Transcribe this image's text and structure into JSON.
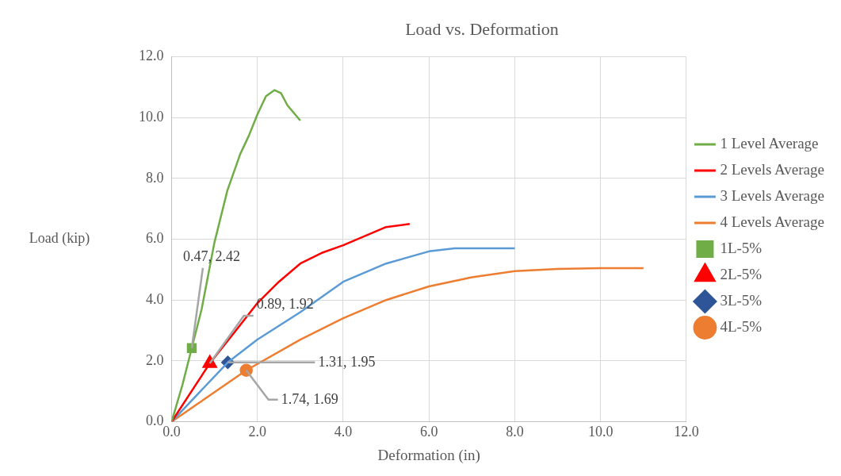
{
  "chart_data": {
    "type": "line",
    "title": "Load vs. Deformation",
    "xlabel": "Deformation (in)",
    "ylabel": "Load (kip)",
    "xlim": [
      0,
      12
    ],
    "ylim": [
      0,
      12
    ],
    "xticks": [
      {
        "value": 0,
        "label": "0.0"
      },
      {
        "value": 2,
        "label": "2.0"
      },
      {
        "value": 4,
        "label": "4.0"
      },
      {
        "value": 6,
        "label": "6.0"
      },
      {
        "value": 8,
        "label": "8.0"
      },
      {
        "value": 10,
        "label": "10.0"
      },
      {
        "value": 12,
        "label": "12.0"
      }
    ],
    "yticks": [
      {
        "value": 0,
        "label": "0.0"
      },
      {
        "value": 2,
        "label": "2.0"
      },
      {
        "value": 4,
        "label": "4.0"
      },
      {
        "value": 6,
        "label": "6.0"
      },
      {
        "value": 8,
        "label": "8.0"
      },
      {
        "value": 10,
        "label": "10.0"
      },
      {
        "value": 12,
        "label": "12.0"
      }
    ],
    "grid": true,
    "legend": "right",
    "marker": "none",
    "line_style": "solid",
    "series": [
      {
        "name": "1 Level Average",
        "color": "#70ad47",
        "x": [
          0,
          0.25,
          0.47,
          0.7,
          1.0,
          1.3,
          1.6,
          1.8,
          2.0,
          2.2,
          2.4,
          2.55,
          2.7,
          3.0
        ],
        "values": [
          0,
          1.2,
          2.42,
          3.7,
          5.9,
          7.6,
          8.8,
          9.4,
          10.1,
          10.7,
          10.9,
          10.8,
          10.4,
          9.9
        ]
      },
      {
        "name": "2 Levels Average",
        "color": "#ff0000",
        "x": [
          0,
          0.89,
          1.5,
          2.0,
          2.5,
          3.0,
          3.5,
          4.0,
          4.5,
          5.0,
          5.55
        ],
        "values": [
          0,
          1.92,
          3.0,
          3.9,
          4.6,
          5.2,
          5.55,
          5.8,
          6.1,
          6.4,
          6.5
        ]
      },
      {
        "name": "3 Levels Average",
        "color": "#5b9bd5",
        "x": [
          0,
          1.31,
          2,
          3,
          4,
          5,
          6,
          6.6,
          8
        ],
        "values": [
          0,
          1.95,
          2.7,
          3.6,
          4.6,
          5.2,
          5.6,
          5.7,
          5.7
        ]
      },
      {
        "name": "4 Levels Average",
        "color": "#ed7d31",
        "x": [
          0,
          1.74,
          3,
          4,
          5,
          6,
          7,
          8,
          9,
          10,
          11
        ],
        "values": [
          0,
          1.69,
          2.7,
          3.4,
          4.0,
          4.45,
          4.75,
          4.95,
          5.02,
          5.05,
          5.05
        ]
      },
      {
        "name": "1L-5%",
        "type": "scatter",
        "marker": "square",
        "color": "#70ad47",
        "x": [
          0.47
        ],
        "values": [
          2.42
        ]
      },
      {
        "name": "2L-5%",
        "type": "scatter",
        "marker": "triangle",
        "color": "#ff0000",
        "x": [
          0.89
        ],
        "values": [
          1.92
        ]
      },
      {
        "name": "3L-5%",
        "type": "scatter",
        "marker": "diamond",
        "color": "#2e5597",
        "x": [
          1.31
        ],
        "values": [
          1.95
        ]
      },
      {
        "name": "4L-5%",
        "type": "scatter",
        "marker": "circle",
        "color": "#ed7d31",
        "x": [
          1.74
        ],
        "values": [
          1.69
        ]
      }
    ],
    "annotations": [
      {
        "text": "0.47, 2.42",
        "x": 0.47,
        "y": 2.42
      },
      {
        "text": "0.89, 1.92",
        "x": 0.89,
        "y": 1.92
      },
      {
        "text": "1.31, 1.95",
        "x": 1.31,
        "y": 1.95
      },
      {
        "text": "1.74, 1.69",
        "x": 1.74,
        "y": 1.69
      }
    ]
  }
}
